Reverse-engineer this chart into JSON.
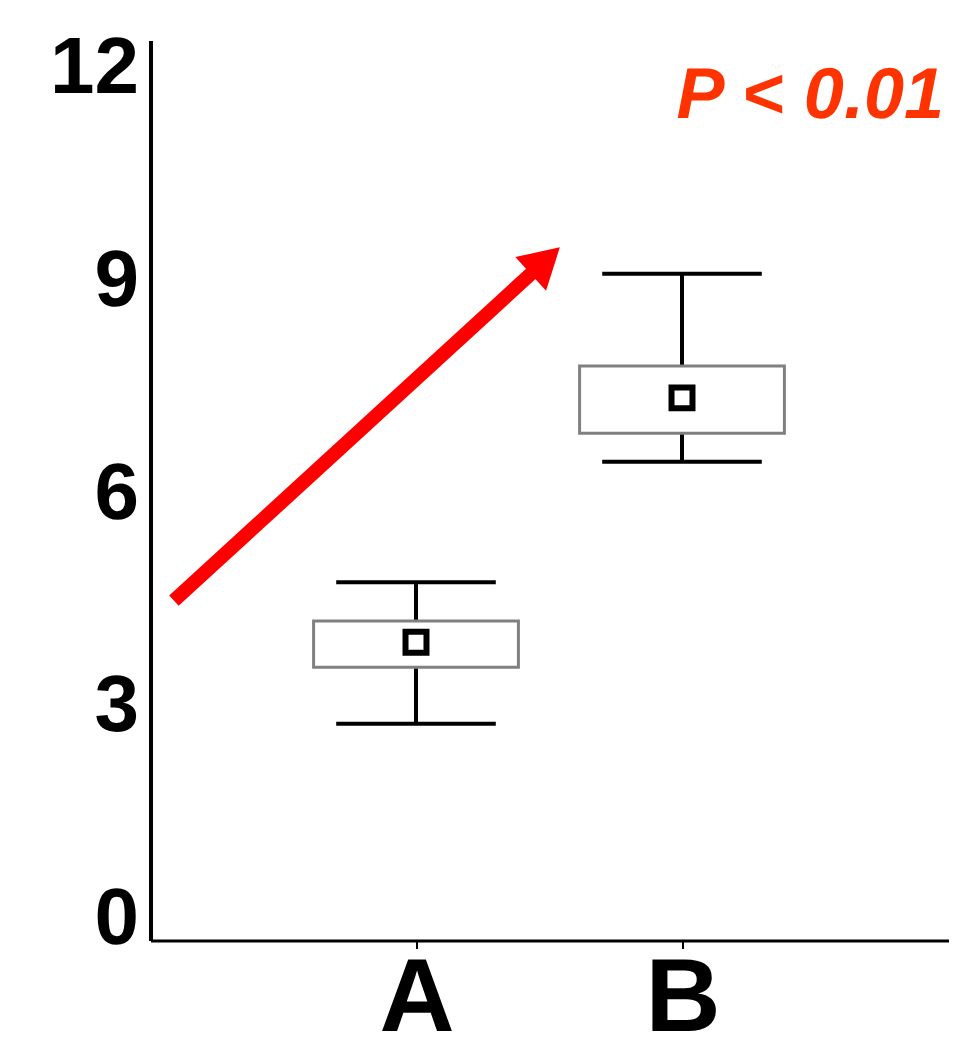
{
  "chart_data": {
    "type": "box",
    "categories": [
      "A",
      "B"
    ],
    "boxes": [
      {
        "low": 2.75,
        "q1": 3.55,
        "q3": 4.2,
        "high": 4.75,
        "mean": 3.9
      },
      {
        "low": 6.45,
        "q1": 6.85,
        "q3": 7.8,
        "high": 9.1,
        "mean": 7.35
      }
    ],
    "ylim": [
      -0.3,
      12.4
    ],
    "yticks": [
      0,
      3,
      6,
      9,
      12
    ],
    "annotations": [
      "P < 0.01"
    ]
  }
}
